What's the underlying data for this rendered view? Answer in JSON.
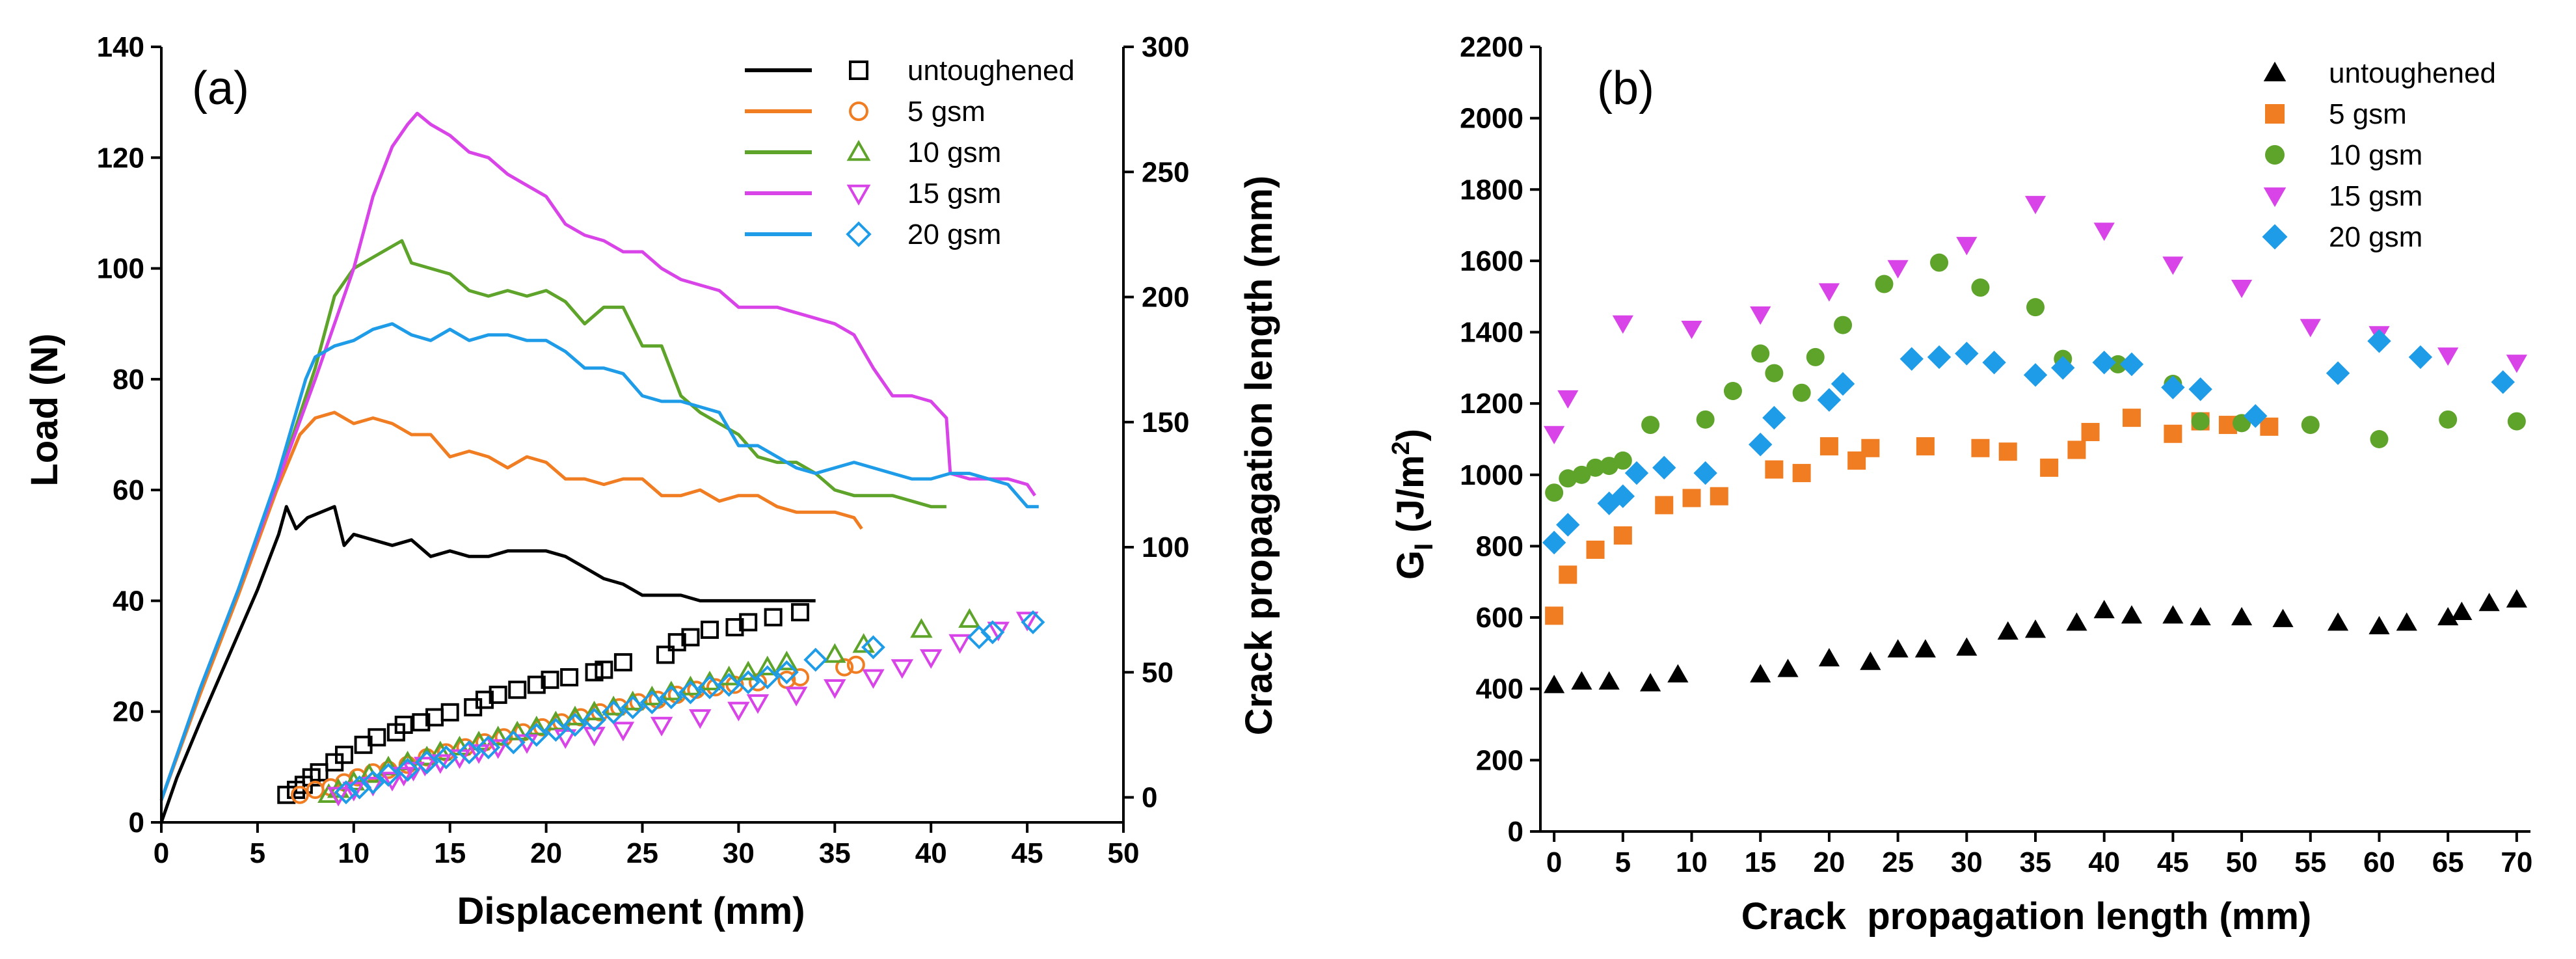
{
  "colors": {
    "untoughened": "#000000",
    "5 gsm": "#f07d22",
    "10 gsm": "#5ea32a",
    "15 gsm": "#d844e8",
    "20 gsm": "#1f9ce8"
  },
  "chart_data": [
    {
      "type": "line",
      "panel_label": "(a)",
      "xlabel": "Displacement (mm)",
      "ylabel": "Load (N)",
      "y2label": "Crack propagation length (mm)",
      "xlim": [
        0,
        50
      ],
      "ylim": [
        0,
        140
      ],
      "y2lim": [
        -10,
        300
      ],
      "xticks": [
        0,
        5,
        10,
        15,
        20,
        25,
        30,
        35,
        40,
        45,
        50
      ],
      "yticks": [
        0,
        20,
        40,
        60,
        80,
        100,
        120,
        140
      ],
      "y2ticks": [
        0,
        50,
        100,
        150,
        200,
        250,
        300
      ],
      "legend": [
        "untoughened",
        "5 gsm",
        "10 gsm",
        "15 gsm",
        "20 gsm"
      ],
      "load_series": [
        {
          "name": "untoughened",
          "x": [
            0,
            0.8,
            2,
            3.5,
            5,
            6.1,
            6.5,
            7,
            7.6,
            8.3,
            9,
            9.5,
            10,
            11,
            12,
            13,
            14,
            15,
            16,
            17,
            18,
            19,
            20,
            21,
            22,
            23,
            24,
            25,
            26,
            27,
            28,
            29,
            30,
            31,
            32,
            33,
            34
          ],
          "y": [
            0,
            8,
            18,
            30,
            42,
            52,
            57,
            53,
            55,
            56,
            57,
            50,
            52,
            51,
            50,
            51,
            48,
            49,
            48,
            48,
            49,
            49,
            49,
            48,
            46,
            44,
            43,
            41,
            41,
            41,
            40,
            40,
            40,
            40,
            40,
            40,
            40
          ]
        },
        {
          "name": "5 gsm",
          "x": [
            0,
            2,
            4,
            6,
            7.2,
            8,
            9,
            10,
            11,
            12,
            13,
            14,
            15,
            16,
            17,
            18,
            19,
            20,
            21,
            22,
            23,
            24,
            25,
            26,
            27,
            28,
            29,
            30,
            31,
            32,
            33,
            34,
            35,
            36,
            36.4
          ],
          "y": [
            4,
            23,
            41,
            60,
            70,
            73,
            74,
            72,
            73,
            72,
            70,
            70,
            66,
            67,
            66,
            64,
            66,
            65,
            62,
            62,
            61,
            62,
            62,
            59,
            59,
            60,
            58,
            59,
            59,
            57,
            56,
            56,
            56,
            55,
            53
          ]
        },
        {
          "name": "10 gsm",
          "x": [
            0,
            2,
            4,
            6,
            8,
            9,
            10,
            11,
            12,
            12.5,
            13,
            14,
            15,
            16,
            17,
            18,
            19,
            20,
            21,
            22,
            23,
            24,
            25,
            26,
            27,
            28,
            29,
            30,
            31,
            32,
            33,
            34,
            35,
            36,
            37,
            38,
            39,
            40,
            40.8
          ],
          "y": [
            4,
            24,
            42,
            61,
            82,
            95,
            100,
            102,
            104,
            105,
            101,
            100,
            99,
            96,
            95,
            96,
            95,
            96,
            94,
            90,
            93,
            93,
            86,
            86,
            77,
            74,
            72,
            70,
            66,
            65,
            65,
            63,
            60,
            59,
            59,
            59,
            58,
            57,
            57
          ]
        },
        {
          "name": "15 gsm",
          "x": [
            0,
            2,
            4,
            6,
            8,
            10,
            11,
            12,
            12.8,
            13.3,
            14,
            15,
            16,
            17,
            18,
            19,
            20,
            21,
            22,
            23,
            24,
            25,
            26,
            27,
            28,
            29,
            30,
            31,
            32,
            33,
            34,
            35,
            36,
            37,
            38,
            39,
            40,
            40.8,
            41,
            42,
            43,
            44,
            45,
            45.4
          ],
          "y": [
            4,
            24,
            42,
            61,
            80,
            100,
            113,
            122,
            126,
            128,
            126,
            124,
            121,
            120,
            117,
            115,
            113,
            108,
            106,
            105,
            103,
            103,
            100,
            98,
            97,
            96,
            93,
            93,
            93,
            92,
            91,
            90,
            88,
            82,
            77,
            77,
            76,
            73,
            63,
            62,
            62,
            62,
            61,
            59
          ]
        },
        {
          "name": "20 gsm",
          "x": [
            0,
            2,
            4,
            6,
            7.5,
            8,
            9,
            10,
            11,
            12,
            13,
            14,
            15,
            16,
            17,
            18,
            19,
            20,
            21,
            22,
            23,
            24,
            25,
            26,
            27,
            28,
            29,
            30,
            31,
            32,
            33,
            34,
            35,
            36,
            37,
            38,
            39,
            40,
            41,
            42,
            43,
            44,
            45,
            45.6
          ],
          "y": [
            4,
            24,
            42,
            62,
            80,
            84,
            86,
            87,
            89,
            90,
            88,
            87,
            89,
            87,
            88,
            88,
            87,
            87,
            85,
            82,
            82,
            81,
            77,
            76,
            76,
            75,
            74,
            68,
            68,
            66,
            64,
            63,
            64,
            65,
            64,
            63,
            62,
            62,
            63,
            63,
            62,
            61,
            57,
            57
          ]
        }
      ],
      "crack_series": [
        {
          "name": "untoughened",
          "x": [
            6.5,
            7,
            7.4,
            7.8,
            8.2,
            9,
            9.5,
            10.5,
            11.2,
            12.2,
            12.6,
            13.5,
            14.2,
            15,
            16.2,
            16.8,
            17.5,
            18.5,
            19.5,
            20.2,
            21.2,
            22.5,
            23,
            24,
            26.2,
            26.8,
            27.5,
            28.5,
            29.8,
            30.5,
            31.8,
            33.2
          ],
          "y": [
            1,
            3,
            5,
            8,
            10,
            14,
            17,
            21,
            24,
            26,
            29,
            30,
            32,
            34,
            36,
            39,
            41,
            43,
            45,
            47,
            48,
            50,
            51,
            54,
            57,
            62,
            64,
            67,
            68,
            70,
            72,
            74
          ]
        },
        {
          "name": "5 gsm",
          "x": [
            7.2,
            8,
            8.8,
            9.5,
            10.2,
            11,
            11.8,
            12.8,
            13.8,
            14.8,
            15.8,
            16.8,
            17.8,
            18.8,
            19.8,
            20.8,
            21.8,
            22.8,
            23.8,
            24.8,
            25.8,
            26.8,
            27.8,
            28.8,
            29.8,
            31,
            32.5,
            33.2,
            35.5,
            36.1
          ],
          "y": [
            1,
            3,
            4,
            6,
            8,
            10,
            11,
            13,
            16,
            18,
            20,
            22,
            24,
            26,
            28,
            30,
            32,
            34,
            36,
            38,
            39,
            41,
            43,
            44,
            45,
            46,
            47,
            48,
            52,
            53
          ]
        },
        {
          "name": "10 gsm",
          "x": [
            8.7,
            9.2,
            10,
            10.8,
            11.8,
            12.8,
            13.8,
            14.5,
            15.5,
            16.5,
            17.5,
            18.5,
            19.5,
            20.5,
            21.5,
            22.5,
            23.5,
            24.5,
            25.5,
            26.5,
            27.5,
            28.5,
            29.5,
            30.5,
            31.5,
            32.5,
            35,
            36.5,
            39.5,
            42
          ],
          "y": [
            1,
            3,
            6,
            9,
            12,
            14,
            16,
            18,
            20,
            22,
            24,
            26,
            28,
            30,
            32,
            34,
            36,
            38,
            40,
            42,
            44,
            46,
            48,
            50,
            52,
            54,
            57,
            61,
            67,
            71
          ]
        },
        {
          "name": "15 gsm",
          "x": [
            9.2,
            10,
            11,
            12,
            12.6,
            13.1,
            13.7,
            14.5,
            15.5,
            16.5,
            17.5,
            19,
            21,
            22.5,
            24,
            26,
            28,
            30,
            31,
            33,
            35,
            37,
            38.5,
            40,
            41.5,
            43.5,
            45
          ],
          "y": [
            1,
            3,
            5,
            7,
            9,
            11,
            13,
            14,
            16,
            18,
            20,
            22,
            24,
            25,
            27,
            29,
            32,
            35,
            38,
            41,
            44,
            48,
            52,
            56,
            62,
            67,
            71
          ]
        },
        {
          "name": "20 gsm",
          "x": [
            9.6,
            10.3,
            11,
            11.8,
            12.8,
            13.8,
            14.8,
            16,
            17,
            18.3,
            19.5,
            20.5,
            21.5,
            22.5,
            23.5,
            24.5,
            25.5,
            26.5,
            27.5,
            28.5,
            29.5,
            30.5,
            31.5,
            32.5,
            34,
            37,
            42.5,
            43.2,
            45.3
          ],
          "y": [
            2,
            4,
            6,
            9,
            11,
            14,
            16,
            18,
            20,
            22,
            25,
            27,
            29,
            31,
            34,
            36,
            38,
            40,
            42,
            44,
            45,
            46,
            48,
            50,
            55,
            60,
            64,
            66,
            70
          ]
        }
      ]
    },
    {
      "type": "scatter",
      "panel_label": "(b)",
      "xlabel": "Crack  propagation length (mm)",
      "ylabel_main": "G",
      "ylabel_sub": "I",
      "ylabel_unit": " (J/m",
      "ylabel_sup": "2",
      "ylabel_close": ")",
      "xlim": [
        -1,
        71
      ],
      "ylim": [
        0,
        2200
      ],
      "xticks": [
        0,
        5,
        10,
        15,
        20,
        25,
        30,
        35,
        40,
        45,
        50,
        55,
        60,
        65,
        70
      ],
      "yticks": [
        0,
        200,
        400,
        600,
        800,
        1000,
        1200,
        1400,
        1600,
        1800,
        2000,
        2200
      ],
      "legend": [
        "untoughened",
        "5 gsm",
        "10 gsm",
        "15 gsm",
        "20 gsm"
      ],
      "series": [
        {
          "name": "untoughened",
          "marker": "triangle-up",
          "x": [
            0,
            2,
            4,
            7,
            9,
            15,
            17,
            20,
            23,
            25,
            27,
            30,
            33,
            35,
            38,
            40,
            42,
            45,
            47,
            50,
            53,
            57,
            60,
            62,
            65,
            66,
            68,
            70
          ],
          "y": [
            410,
            420,
            420,
            415,
            440,
            440,
            455,
            485,
            475,
            510,
            510,
            515,
            560,
            565,
            585,
            620,
            605,
            605,
            600,
            600,
            595,
            585,
            575,
            585,
            600,
            615,
            640,
            650
          ]
        },
        {
          "name": "5 gsm",
          "marker": "square",
          "x": [
            0,
            1,
            3,
            5,
            8,
            10,
            12,
            16,
            18,
            20,
            22,
            23,
            27,
            31,
            33,
            36,
            38,
            39,
            42,
            45,
            47,
            49,
            52
          ],
          "y": [
            605,
            720,
            790,
            830,
            915,
            935,
            940,
            1015,
            1005,
            1080,
            1040,
            1075,
            1080,
            1075,
            1065,
            1020,
            1070,
            1120,
            1160,
            1115,
            1150,
            1140,
            1135
          ]
        },
        {
          "name": "10 gsm",
          "marker": "circle",
          "x": [
            0,
            1,
            2,
            3,
            4,
            5,
            7,
            11,
            13,
            15,
            16,
            18,
            19,
            21,
            24,
            28,
            31,
            35,
            37,
            41,
            45,
            47,
            50,
            55,
            60,
            65,
            70
          ],
          "y": [
            950,
            990,
            1000,
            1020,
            1025,
            1040,
            1140,
            1155,
            1235,
            1340,
            1285,
            1230,
            1330,
            1420,
            1535,
            1595,
            1525,
            1470,
            1325,
            1310,
            1255,
            1150,
            1145,
            1140,
            1100,
            1155,
            1150
          ]
        },
        {
          "name": "15 gsm",
          "marker": "triangle-down",
          "x": [
            0,
            1,
            5,
            10,
            15,
            20,
            25,
            30,
            35,
            40,
            45,
            50,
            55,
            60,
            65,
            70
          ],
          "y": [
            1115,
            1215,
            1425,
            1410,
            1450,
            1515,
            1580,
            1645,
            1760,
            1685,
            1590,
            1525,
            1415,
            1395,
            1335,
            1315
          ]
        },
        {
          "name": "20 gsm",
          "marker": "diamond",
          "x": [
            0,
            1,
            4,
            5,
            6,
            8,
            11,
            15,
            16,
            20,
            21,
            26,
            28,
            30,
            32,
            35,
            37,
            40,
            42,
            45,
            47,
            51,
            57,
            60,
            63,
            69
          ],
          "y": [
            810,
            860,
            920,
            940,
            1005,
            1020,
            1005,
            1085,
            1160,
            1210,
            1255,
            1325,
            1330,
            1340,
            1315,
            1280,
            1300,
            1315,
            1310,
            1245,
            1240,
            1165,
            1285,
            1375,
            1330,
            1260
          ]
        }
      ]
    }
  ]
}
